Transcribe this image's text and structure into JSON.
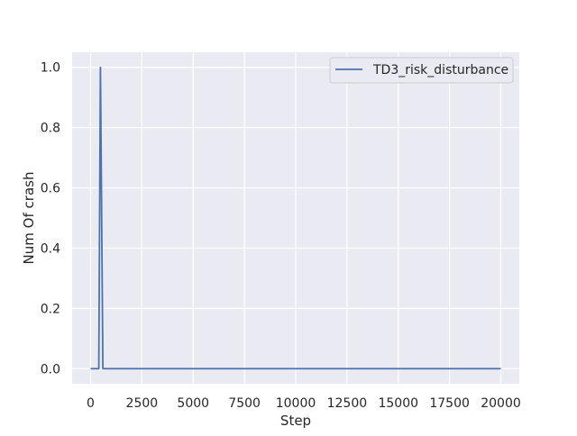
{
  "chart_data": {
    "type": "line",
    "title": "",
    "xlabel": "Step",
    "ylabel": "Num Of crash",
    "xlim": [
      -900,
      20900
    ],
    "ylim": [
      -0.05,
      1.05
    ],
    "x_ticks": [
      0,
      2500,
      5000,
      7500,
      10000,
      12500,
      15000,
      17500,
      20000
    ],
    "x_tick_labels": [
      "0",
      "2500",
      "5000",
      "7500",
      "10000",
      "12500",
      "15000",
      "17500",
      "20000"
    ],
    "y_ticks": [
      0.0,
      0.2,
      0.4,
      0.6,
      0.8,
      1.0
    ],
    "y_tick_labels": [
      "0.0",
      "0.2",
      "0.4",
      "0.6",
      "0.8",
      "1.0"
    ],
    "grid": true,
    "legend_position": "top-right",
    "series": [
      {
        "name": "TD3_risk_disturbance",
        "color": "#4c72b0",
        "x": [
          0,
          400,
          480,
          600,
          20000
        ],
        "y": [
          0,
          0,
          1,
          0,
          0
        ]
      }
    ]
  }
}
